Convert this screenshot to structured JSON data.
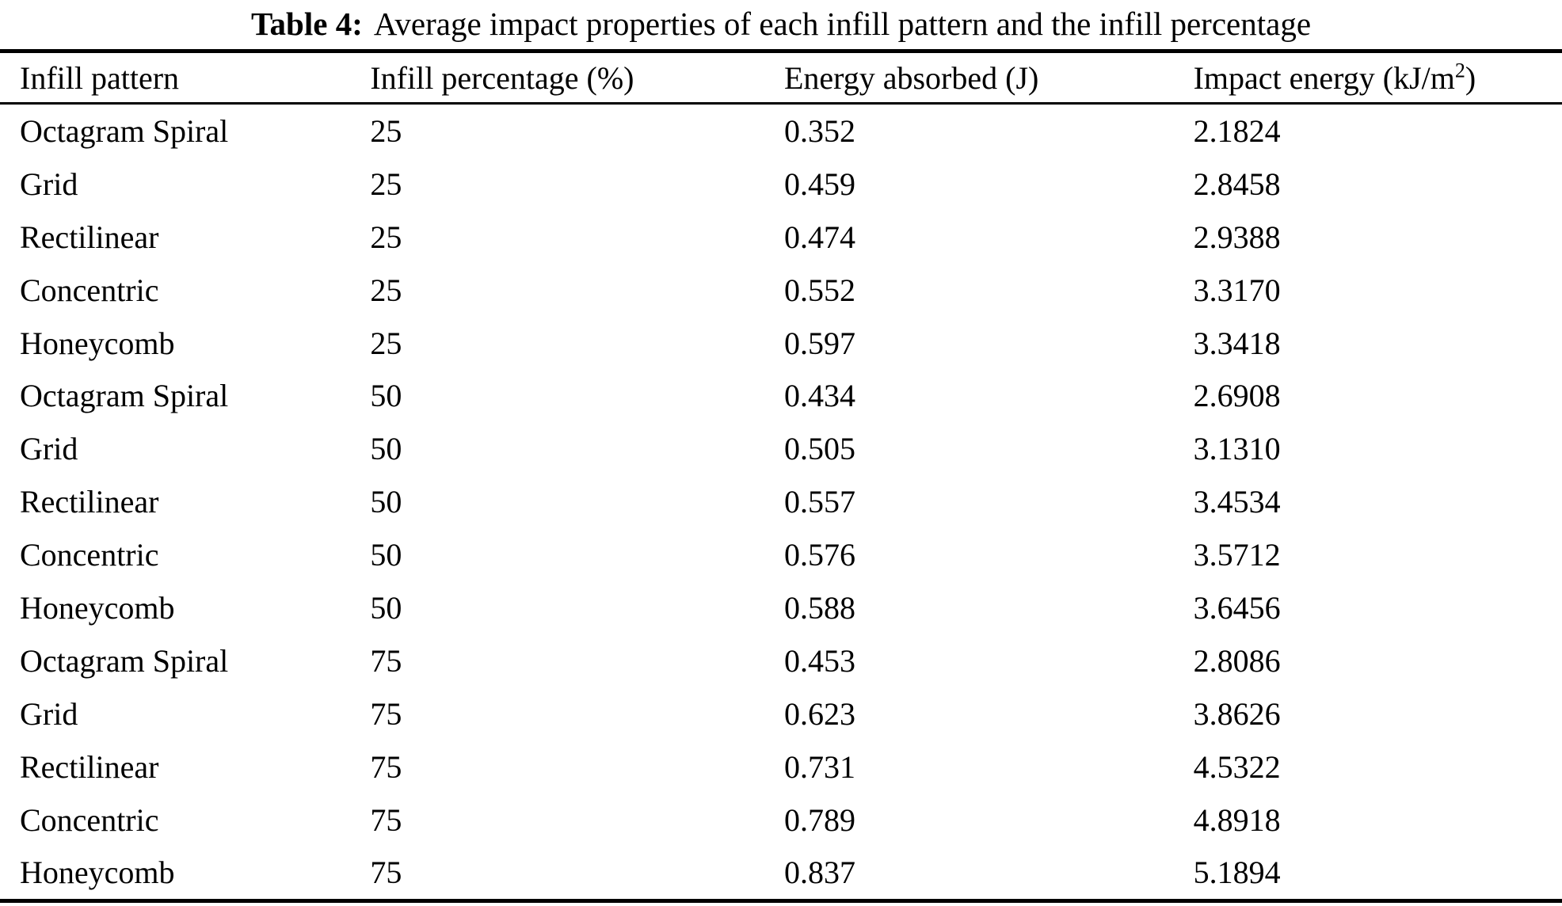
{
  "colors": {
    "text": "#000000",
    "background": "#ffffff",
    "rule": "#000000"
  },
  "caption": {
    "label": "Table 4:",
    "text": "Average impact properties of each infill pattern and the infill percentage"
  },
  "table": {
    "header": {
      "col1": "Infill pattern",
      "col2": "Infill percentage (%)",
      "col3": "Energy absorbed (J)",
      "col4_prefix": "Impact energy (kJ/m",
      "col4_sup": "2",
      "col4_suffix": ")"
    },
    "rows": [
      {
        "pattern": "Octagram Spiral",
        "percentage": "25",
        "energy_absorbed": "0.352",
        "impact_energy": "2.1824"
      },
      {
        "pattern": "Grid",
        "percentage": "25",
        "energy_absorbed": "0.459",
        "impact_energy": "2.8458"
      },
      {
        "pattern": "Rectilinear",
        "percentage": "25",
        "energy_absorbed": "0.474",
        "impact_energy": "2.9388"
      },
      {
        "pattern": "Concentric",
        "percentage": "25",
        "energy_absorbed": "0.552",
        "impact_energy": "3.3170"
      },
      {
        "pattern": "Honeycomb",
        "percentage": "25",
        "energy_absorbed": "0.597",
        "impact_energy": "3.3418"
      },
      {
        "pattern": "Octagram Spiral",
        "percentage": "50",
        "energy_absorbed": "0.434",
        "impact_energy": "2.6908"
      },
      {
        "pattern": "Grid",
        "percentage": "50",
        "energy_absorbed": "0.505",
        "impact_energy": "3.1310"
      },
      {
        "pattern": "Rectilinear",
        "percentage": "50",
        "energy_absorbed": "0.557",
        "impact_energy": "3.4534"
      },
      {
        "pattern": "Concentric",
        "percentage": "50",
        "energy_absorbed": "0.576",
        "impact_energy": "3.5712"
      },
      {
        "pattern": "Honeycomb",
        "percentage": "50",
        "energy_absorbed": "0.588",
        "impact_energy": "3.6456"
      },
      {
        "pattern": "Octagram Spiral",
        "percentage": "75",
        "energy_absorbed": "0.453",
        "impact_energy": "2.8086"
      },
      {
        "pattern": "Grid",
        "percentage": "75",
        "energy_absorbed": "0.623",
        "impact_energy": "3.8626"
      },
      {
        "pattern": "Rectilinear",
        "percentage": "75",
        "energy_absorbed": "0.731",
        "impact_energy": "4.5322"
      },
      {
        "pattern": "Concentric",
        "percentage": "75",
        "energy_absorbed": "0.789",
        "impact_energy": "4.8918"
      },
      {
        "pattern": "Honeycomb",
        "percentage": "75",
        "energy_absorbed": "0.837",
        "impact_energy": "5.1894"
      }
    ]
  }
}
